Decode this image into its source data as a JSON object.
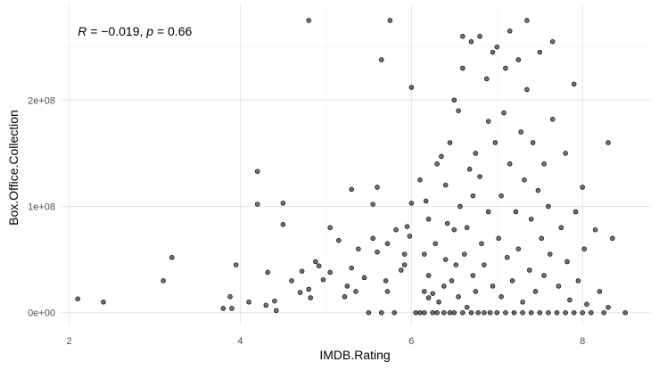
{
  "chart_data": {
    "type": "scatter",
    "title": "",
    "xlabel": "IMDB.Rating",
    "ylabel": "Box.Office.Collection",
    "xlim": [
      1.9,
      8.8
    ],
    "ylim": [
      -12000000,
      290000000
    ],
    "x_ticks": [
      2,
      4,
      6,
      8
    ],
    "x_tick_labels": [
      "2",
      "4",
      "6",
      "8"
    ],
    "x_minor_ticks": [
      3,
      5,
      7
    ],
    "y_ticks": [
      0,
      100000000,
      200000000
    ],
    "y_tick_labels": [
      "0e+00",
      "1e+08",
      "2e+08"
    ],
    "y_minor_ticks": [
      50000000,
      150000000,
      250000000
    ],
    "grid": true,
    "theme": "minimal",
    "annotation": {
      "r_label": "R",
      "r_value": " = −0.019, ",
      "p_label": "p",
      "p_value": " = 0.66",
      "x": 2.1,
      "y": 265000000
    },
    "marker_color": "#000000",
    "points": [
      [
        2.1,
        13000000
      ],
      [
        2.4,
        10000000
      ],
      [
        3.1,
        30000000
      ],
      [
        3.2,
        52000000
      ],
      [
        3.8,
        4000000
      ],
      [
        3.88,
        15000000
      ],
      [
        3.9,
        4000000
      ],
      [
        3.95,
        45000000
      ],
      [
        4.1,
        10000000
      ],
      [
        4.2,
        133000000
      ],
      [
        4.2,
        102000000
      ],
      [
        4.3,
        7000000
      ],
      [
        4.32,
        38000000
      ],
      [
        4.4,
        11000000
      ],
      [
        4.42,
        2000000
      ],
      [
        4.5,
        103000000
      ],
      [
        4.5,
        83000000
      ],
      [
        4.6,
        30000000
      ],
      [
        4.7,
        19000000
      ],
      [
        4.72,
        39000000
      ],
      [
        4.8,
        275000000
      ],
      [
        4.8,
        22000000
      ],
      [
        4.82,
        14000000
      ],
      [
        4.88,
        48000000
      ],
      [
        4.92,
        44000000
      ],
      [
        4.97,
        31000000
      ],
      [
        5.05,
        38000000
      ],
      [
        5.05,
        80000000
      ],
      [
        5.15,
        68000000
      ],
      [
        5.22,
        15000000
      ],
      [
        5.25,
        25000000
      ],
      [
        5.3,
        42000000
      ],
      [
        5.3,
        116000000
      ],
      [
        5.35,
        20000000
      ],
      [
        5.38,
        60000000
      ],
      [
        5.45,
        33000000
      ],
      [
        5.5,
        0
      ],
      [
        5.55,
        70000000
      ],
      [
        5.55,
        102000000
      ],
      [
        5.6,
        57000000
      ],
      [
        5.6,
        118000000
      ],
      [
        5.65,
        238000000
      ],
      [
        5.65,
        0
      ],
      [
        5.7,
        30000000
      ],
      [
        5.72,
        65000000
      ],
      [
        5.72,
        20000000
      ],
      [
        5.75,
        275000000
      ],
      [
        5.8,
        0
      ],
      [
        5.82,
        78000000
      ],
      [
        5.88,
        40000000
      ],
      [
        5.92,
        55000000
      ],
      [
        5.92,
        45000000
      ],
      [
        5.95,
        81000000
      ],
      [
        5.98,
        72000000
      ],
      [
        6.0,
        212000000
      ],
      [
        6.0,
        103000000
      ],
      [
        6.05,
        0
      ],
      [
        6.1,
        0
      ],
      [
        6.1,
        125000000
      ],
      [
        6.15,
        0
      ],
      [
        6.15,
        20000000
      ],
      [
        6.15,
        55000000
      ],
      [
        6.17,
        105000000
      ],
      [
        6.2,
        35000000
      ],
      [
        6.2,
        88000000
      ],
      [
        6.2,
        14000000
      ],
      [
        6.25,
        0
      ],
      [
        6.25,
        18000000
      ],
      [
        6.28,
        65000000
      ],
      [
        6.3,
        0
      ],
      [
        6.3,
        140000000
      ],
      [
        6.32,
        10000000
      ],
      [
        6.35,
        147000000
      ],
      [
        6.38,
        0
      ],
      [
        6.38,
        25000000
      ],
      [
        6.4,
        120000000
      ],
      [
        6.4,
        50000000
      ],
      [
        6.42,
        84000000
      ],
      [
        6.45,
        0
      ],
      [
        6.45,
        160000000
      ],
      [
        6.47,
        30000000
      ],
      [
        6.5,
        0
      ],
      [
        6.5,
        200000000
      ],
      [
        6.5,
        78000000
      ],
      [
        6.52,
        45000000
      ],
      [
        6.55,
        15000000
      ],
      [
        6.55,
        190000000
      ],
      [
        6.57,
        100000000
      ],
      [
        6.6,
        0
      ],
      [
        6.6,
        230000000
      ],
      [
        6.6,
        260000000
      ],
      [
        6.62,
        55000000
      ],
      [
        6.65,
        80000000
      ],
      [
        6.65,
        5000000
      ],
      [
        6.68,
        135000000
      ],
      [
        6.7,
        0
      ],
      [
        6.7,
        255000000
      ],
      [
        6.72,
        110000000
      ],
      [
        6.72,
        35000000
      ],
      [
        6.75,
        20000000
      ],
      [
        6.75,
        150000000
      ],
      [
        6.78,
        0
      ],
      [
        6.8,
        260000000
      ],
      [
        6.8,
        128000000
      ],
      [
        6.82,
        65000000
      ],
      [
        6.85,
        0
      ],
      [
        6.85,
        45000000
      ],
      [
        6.88,
        220000000
      ],
      [
        6.9,
        95000000
      ],
      [
        6.9,
        180000000
      ],
      [
        6.92,
        0
      ],
      [
        6.95,
        245000000
      ],
      [
        6.95,
        25000000
      ],
      [
        6.98,
        160000000
      ],
      [
        7.0,
        0
      ],
      [
        7.0,
        250000000
      ],
      [
        7.02,
        70000000
      ],
      [
        7.05,
        110000000
      ],
      [
        7.05,
        15000000
      ],
      [
        7.08,
        188000000
      ],
      [
        7.1,
        0
      ],
      [
        7.1,
        230000000
      ],
      [
        7.12,
        52000000
      ],
      [
        7.15,
        265000000
      ],
      [
        7.15,
        140000000
      ],
      [
        7.18,
        30000000
      ],
      [
        7.2,
        0
      ],
      [
        7.22,
        95000000
      ],
      [
        7.25,
        238000000
      ],
      [
        7.25,
        60000000
      ],
      [
        7.28,
        170000000
      ],
      [
        7.3,
        0
      ],
      [
        7.3,
        10000000
      ],
      [
        7.32,
        125000000
      ],
      [
        7.35,
        210000000
      ],
      [
        7.35,
        275000000
      ],
      [
        7.38,
        40000000
      ],
      [
        7.4,
        0
      ],
      [
        7.4,
        88000000
      ],
      [
        7.42,
        160000000
      ],
      [
        7.45,
        20000000
      ],
      [
        7.48,
        115000000
      ],
      [
        7.5,
        0
      ],
      [
        7.5,
        245000000
      ],
      [
        7.52,
        70000000
      ],
      [
        7.55,
        35000000
      ],
      [
        7.55,
        140000000
      ],
      [
        7.6,
        0
      ],
      [
        7.6,
        100000000
      ],
      [
        7.62,
        55000000
      ],
      [
        7.65,
        255000000
      ],
      [
        7.65,
        182000000
      ],
      [
        7.7,
        0
      ],
      [
        7.72,
        25000000
      ],
      [
        7.75,
        80000000
      ],
      [
        7.8,
        0
      ],
      [
        7.8,
        150000000
      ],
      [
        7.82,
        48000000
      ],
      [
        7.85,
        12000000
      ],
      [
        7.9,
        0
      ],
      [
        7.9,
        215000000
      ],
      [
        7.92,
        95000000
      ],
      [
        7.95,
        30000000
      ],
      [
        8.0,
        0
      ],
      [
        8.0,
        118000000
      ],
      [
        8.02,
        60000000
      ],
      [
        8.05,
        8000000
      ],
      [
        8.1,
        0
      ],
      [
        8.15,
        78000000
      ],
      [
        8.2,
        20000000
      ],
      [
        8.25,
        0
      ],
      [
        8.3,
        160000000
      ],
      [
        8.3,
        5000000
      ],
      [
        8.35,
        70000000
      ],
      [
        8.5,
        0
      ]
    ]
  }
}
